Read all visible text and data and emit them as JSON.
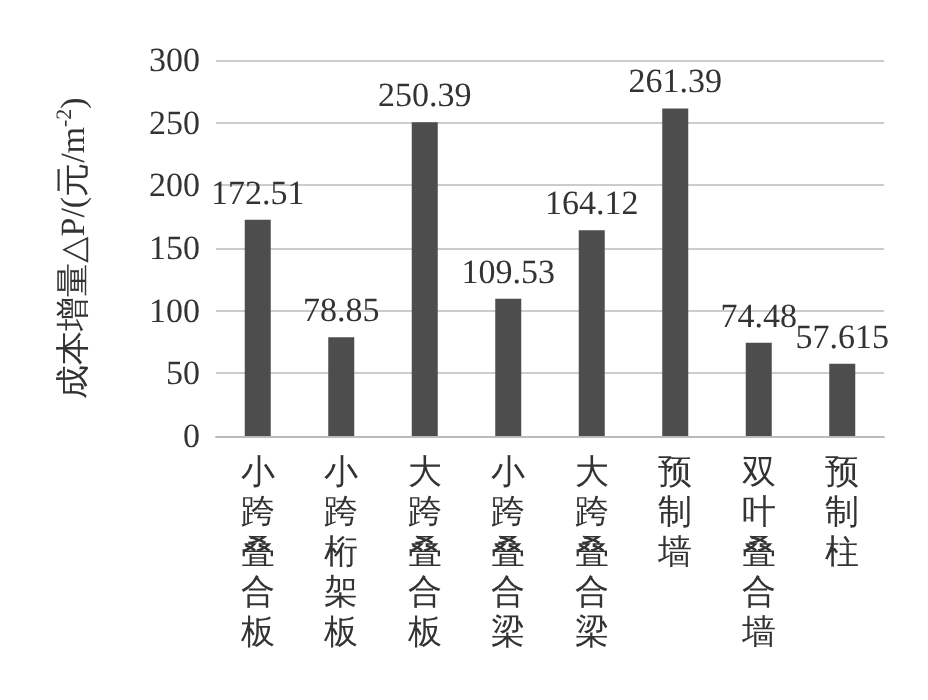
{
  "chart_data": {
    "type": "bar",
    "ylabel": "成本增量△P/(元/m$^{-2}$)",
    "categories": [
      "小跨叠合板",
      "小跨桁架板",
      "大跨叠合板",
      "小跨叠合梁",
      "大跨叠合梁",
      "预制墙",
      "双叶叠合墙",
      "预制柱"
    ],
    "values": [
      172.51,
      78.85,
      250.39,
      109.53,
      164.12,
      261.39,
      74.48,
      57.615
    ],
    "color": "#4d4d4d",
    "ylim": [
      0,
      300
    ],
    "yticks": [
      0,
      50,
      100,
      150,
      200,
      250,
      300
    ],
    "grid": "y",
    "data_labels": true
  }
}
